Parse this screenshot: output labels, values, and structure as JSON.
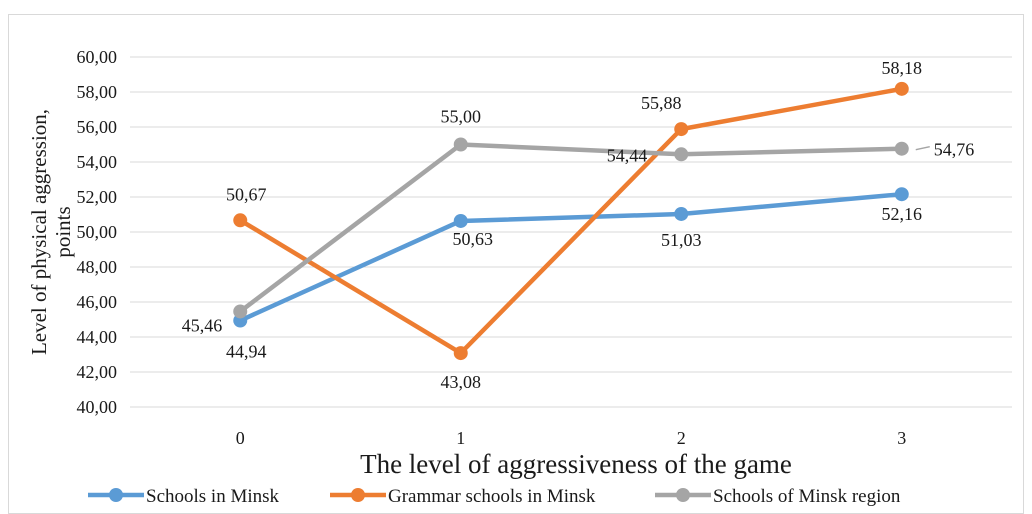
{
  "chart_data": {
    "type": "line",
    "title": "",
    "xlabel": "The level of aggressiveness of the game",
    "ylabel": "Level of physical aggression, points",
    "ylabel_lines": [
      "Level of physical aggression,",
      "points"
    ],
    "categories": [
      "0",
      "1",
      "2",
      "3"
    ],
    "y_ticks": [
      "40,00",
      "42,00",
      "44,00",
      "46,00",
      "48,00",
      "50,00",
      "52,00",
      "54,00",
      "56,00",
      "58,00",
      "60,00"
    ],
    "ylim": [
      40,
      60
    ],
    "grid": true,
    "legend_position": "bottom",
    "series": [
      {
        "name": "Schools in Minsk",
        "color": "#5b9bd5",
        "values": [
          44.94,
          50.63,
          51.03,
          52.16
        ],
        "labels": [
          "44,94",
          "50,63",
          "51,03",
          "52,16"
        ]
      },
      {
        "name": "Grammar schools in Minsk",
        "color": "#ed7d31",
        "values": [
          50.67,
          43.08,
          55.88,
          58.18
        ],
        "labels": [
          "50,67",
          "43,08",
          "55,88",
          "58,18"
        ]
      },
      {
        "name": "Schools of Minsk region",
        "color": "#a5a5a5",
        "values": [
          45.46,
          55.0,
          54.44,
          54.76
        ],
        "labels": [
          "45,46",
          "55,00",
          "54,44",
          "54,76"
        ]
      }
    ]
  }
}
